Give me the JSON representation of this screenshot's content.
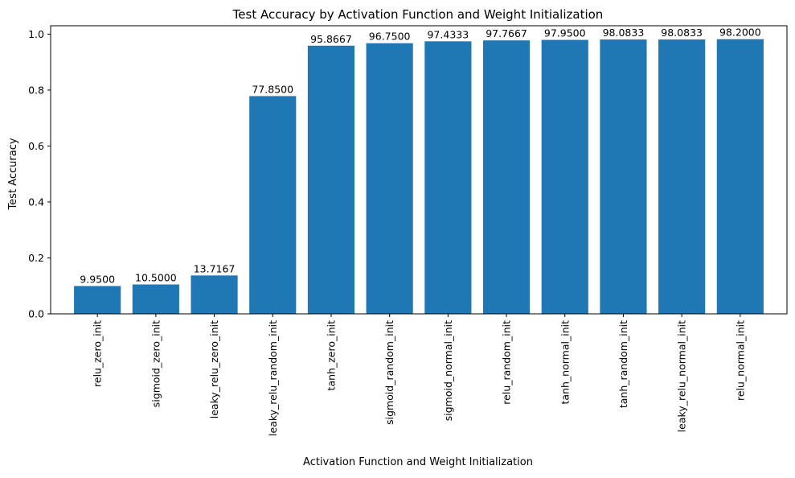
{
  "chart_data": {
    "type": "bar",
    "title": "Test Accuracy by Activation Function and Weight Initialization",
    "xlabel": "Activation Function and Weight Initialization",
    "ylabel": "Test Accuracy",
    "ylim": [
      0,
      1.03
    ],
    "yticks": [
      0.0,
      0.2,
      0.4,
      0.6,
      0.8,
      1.0
    ],
    "ytick_labels": [
      "0.0",
      "0.2",
      "0.4",
      "0.6",
      "0.8",
      "1.0"
    ],
    "bar_color": "#1f77b4",
    "grid": false,
    "categories": [
      "relu_zero_init",
      "sigmoid_zero_init",
      "leaky_relu_zero_init",
      "leaky_relu_random_init",
      "tanh_zero_init",
      "sigmoid_random_init",
      "sigmoid_normal_init",
      "relu_random_init",
      "tanh_normal_init",
      "tanh_random_init",
      "leaky_relu_normal_init",
      "relu_normal_init"
    ],
    "values": [
      0.0995,
      0.105,
      0.137167,
      0.7785,
      0.958667,
      0.9675,
      0.974333,
      0.977667,
      0.9795,
      0.980833,
      0.980833,
      0.982
    ],
    "data_labels": [
      "9.9500",
      "10.5000",
      "13.7167",
      "77.8500",
      "95.8667",
      "96.7500",
      "97.4333",
      "97.7667",
      "97.9500",
      "98.0833",
      "98.0833",
      "98.2000"
    ]
  }
}
